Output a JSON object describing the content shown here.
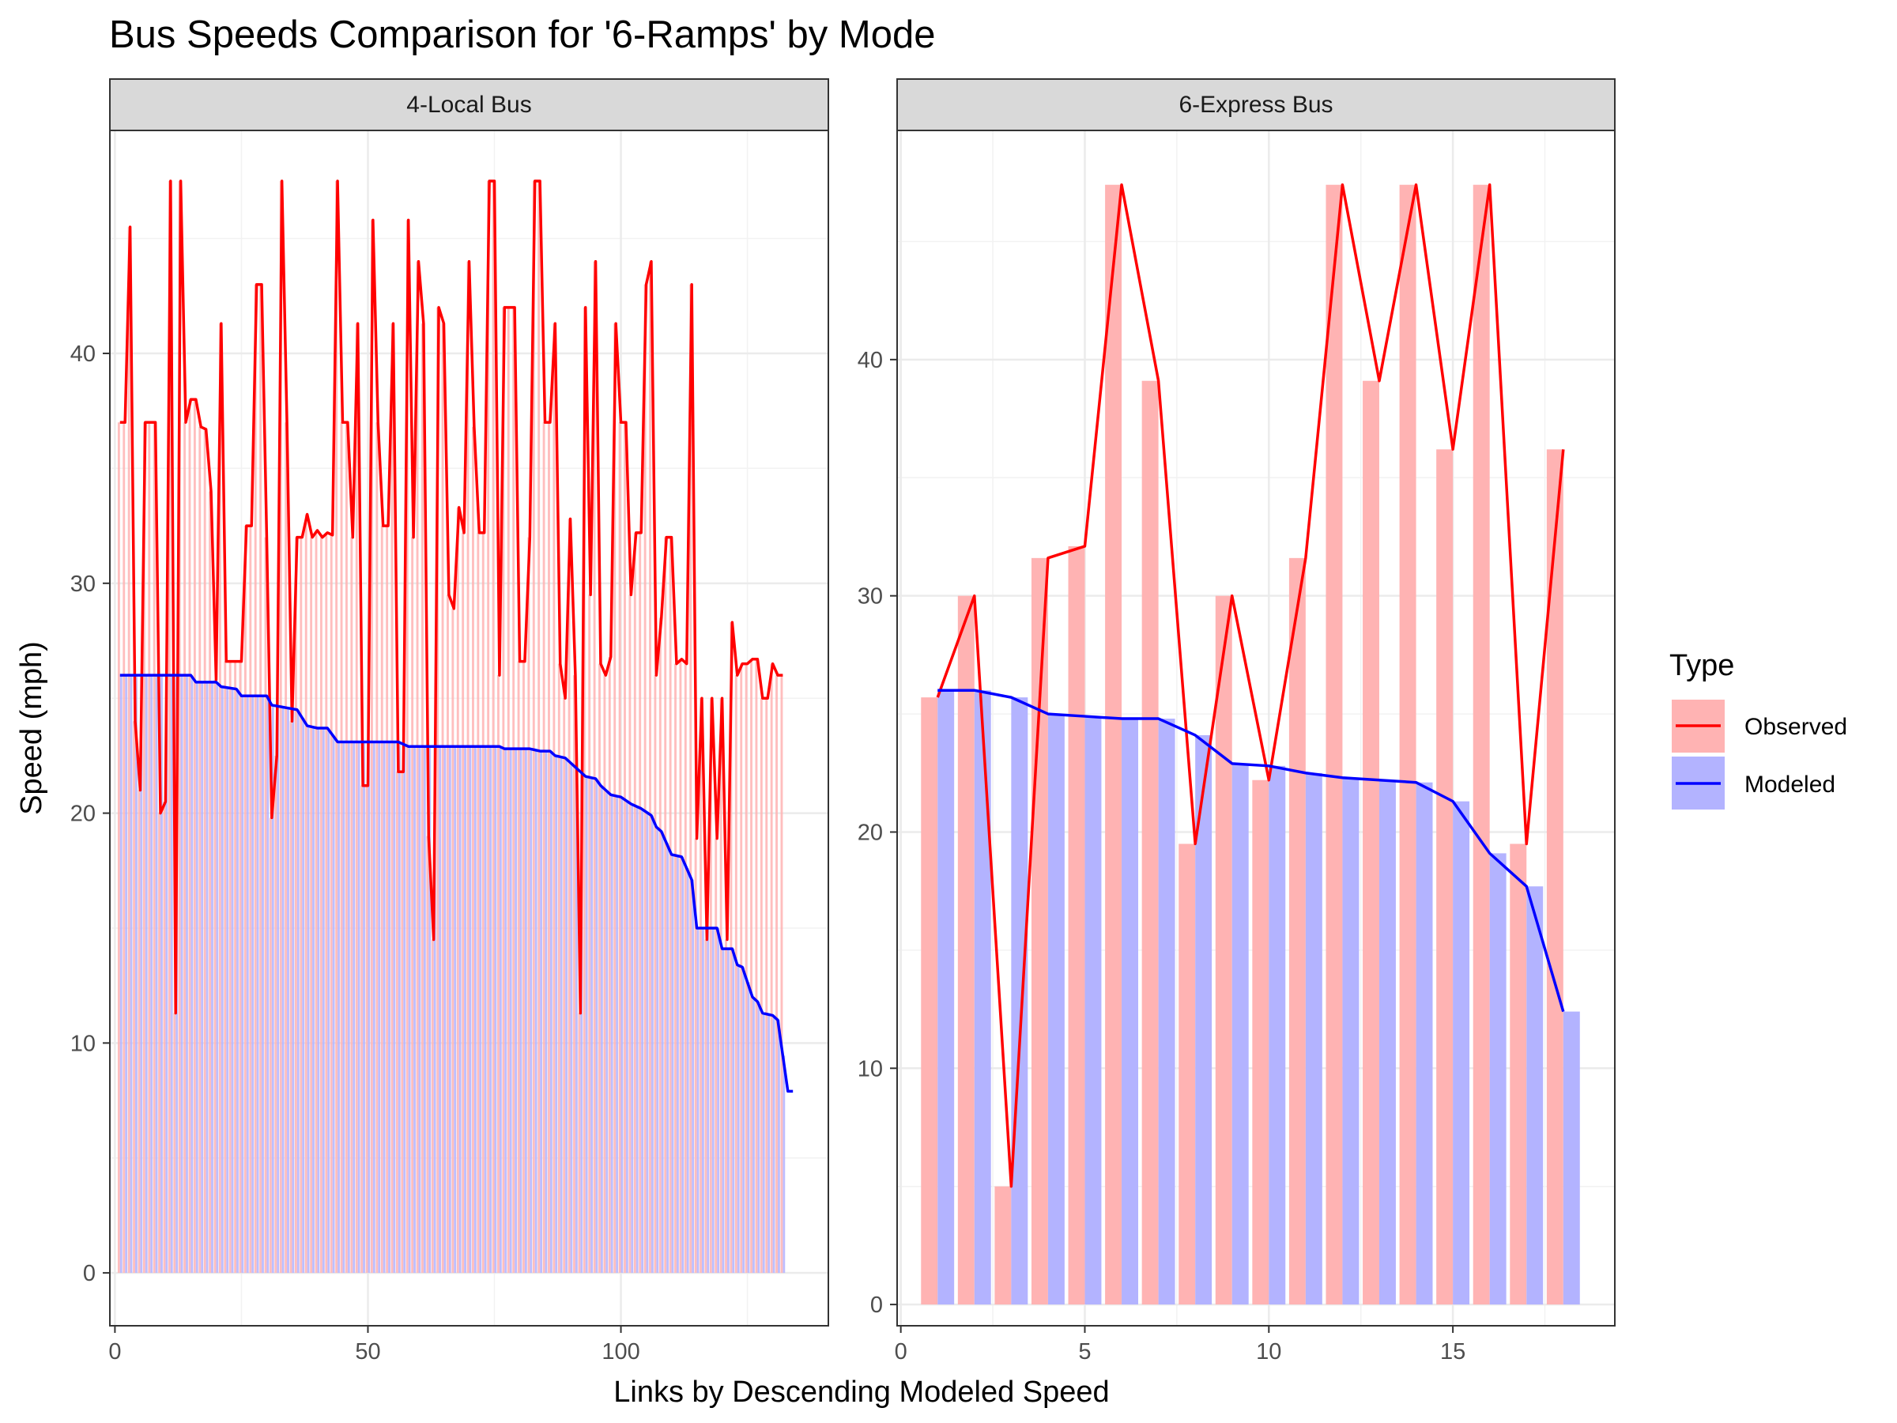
{
  "chart_data": {
    "type": "bar+line",
    "title": "Bus Speeds Comparison for '6-Ramps' by Mode",
    "xlabel": "Links by Descending Modeled Speed",
    "ylabel": "Speed (mph)",
    "grid": true,
    "legend": {
      "title": "Type",
      "position": "right",
      "entries": [
        {
          "name": "Observed",
          "line_color": "#ff0000",
          "fill_color": "#ffb3b3"
        },
        {
          "name": "Modeled",
          "line_color": "#0000ff",
          "fill_color": "#b3b3ff"
        }
      ]
    },
    "panels": [
      {
        "name": "4-Local Bus",
        "xlim": [
          -1,
          141
        ],
        "ylim": [
          -2.3,
          49.7
        ],
        "x_ticks": [
          0,
          50,
          100
        ],
        "y_ticks": [
          0,
          10,
          20,
          30,
          40
        ],
        "observed_breakpoints": [
          [
            1,
            37
          ],
          [
            2,
            37
          ],
          [
            3,
            45.5
          ],
          [
            4,
            24
          ],
          [
            5,
            21
          ],
          [
            6,
            37
          ],
          [
            7,
            37
          ],
          [
            8,
            37
          ],
          [
            9,
            20
          ],
          [
            10,
            20.5
          ],
          [
            11,
            47.5
          ],
          [
            12,
            11.3
          ],
          [
            13,
            47.5
          ],
          [
            14,
            37
          ],
          [
            15,
            38
          ],
          [
            16,
            38
          ],
          [
            17,
            36.8
          ],
          [
            18,
            36.7
          ],
          [
            19,
            34
          ],
          [
            20,
            25.8
          ],
          [
            21,
            41.3
          ],
          [
            22,
            26.6
          ],
          [
            23,
            26.6
          ],
          [
            24,
            26.6
          ],
          [
            25,
            26.6
          ],
          [
            26,
            32.5
          ],
          [
            27,
            32.5
          ],
          [
            28,
            43
          ],
          [
            29,
            43
          ],
          [
            30,
            32
          ],
          [
            31,
            19.8
          ],
          [
            32,
            22.5
          ],
          [
            33,
            47.5
          ],
          [
            34,
            37
          ],
          [
            35,
            24
          ],
          [
            36,
            32
          ],
          [
            37,
            32
          ],
          [
            38,
            33
          ],
          [
            39,
            32
          ],
          [
            40,
            32.3
          ],
          [
            41,
            32
          ],
          [
            42,
            32.2
          ],
          [
            43,
            32.1
          ],
          [
            44,
            47.5
          ],
          [
            45,
            37
          ],
          [
            46,
            37
          ],
          [
            47,
            32
          ],
          [
            48,
            41.3
          ],
          [
            49,
            21.2
          ],
          [
            50,
            21.2
          ],
          [
            51,
            45.8
          ],
          [
            52,
            37
          ],
          [
            53,
            32.5
          ],
          [
            54,
            32.5
          ],
          [
            55,
            41.3
          ],
          [
            56,
            21.8
          ],
          [
            57,
            21.8
          ],
          [
            58,
            45.8
          ],
          [
            59,
            32
          ],
          [
            60,
            44
          ],
          [
            61,
            41.3
          ],
          [
            62,
            19
          ],
          [
            63,
            14.5
          ],
          [
            64,
            42
          ],
          [
            65,
            41.3
          ],
          [
            66,
            29.5
          ],
          [
            67,
            28.9
          ],
          [
            68,
            33.3
          ],
          [
            69,
            32.2
          ],
          [
            70,
            44
          ],
          [
            71,
            36.8
          ],
          [
            72,
            32.2
          ],
          [
            73,
            32.2
          ],
          [
            74,
            47.5
          ],
          [
            75,
            47.5
          ],
          [
            76,
            26
          ],
          [
            77,
            42
          ],
          [
            78,
            42
          ],
          [
            79,
            42
          ],
          [
            80,
            26.6
          ],
          [
            81,
            26.6
          ],
          [
            82,
            32
          ],
          [
            83,
            47.5
          ],
          [
            84,
            47.5
          ],
          [
            85,
            37
          ],
          [
            86,
            37
          ],
          [
            87,
            41.3
          ],
          [
            88,
            26.5
          ],
          [
            89,
            25
          ],
          [
            90,
            32.8
          ],
          [
            91,
            26
          ],
          [
            92,
            11.3
          ],
          [
            93,
            42
          ],
          [
            94,
            29.5
          ],
          [
            95,
            44
          ],
          [
            96,
            26.5
          ],
          [
            97,
            26
          ],
          [
            98,
            26.8
          ],
          [
            99,
            41.3
          ],
          [
            100,
            37
          ],
          [
            101,
            37
          ],
          [
            102,
            29.5
          ],
          [
            103,
            32.2
          ],
          [
            104,
            32.2
          ],
          [
            105,
            43
          ],
          [
            106,
            44
          ],
          [
            107,
            26
          ],
          [
            108,
            28.5
          ],
          [
            109,
            32
          ],
          [
            110,
            32
          ],
          [
            111,
            26.5
          ],
          [
            112,
            26.7
          ],
          [
            113,
            26.5
          ],
          [
            114,
            43
          ],
          [
            115,
            18.9
          ],
          [
            116,
            25
          ],
          [
            117,
            14.5
          ],
          [
            118,
            25
          ],
          [
            119,
            18.9
          ],
          [
            120,
            25
          ],
          [
            121,
            14.5
          ],
          [
            122,
            28.3
          ],
          [
            123,
            26
          ],
          [
            124,
            26.5
          ],
          [
            125,
            26.5
          ],
          [
            126,
            26.7
          ],
          [
            127,
            26.7
          ],
          [
            128,
            25
          ],
          [
            129,
            25
          ],
          [
            130,
            26.5
          ],
          [
            131,
            26
          ],
          [
            132,
            26
          ]
        ],
        "modeled_breakpoints": [
          [
            1,
            26
          ],
          [
            15,
            26
          ],
          [
            16,
            25.7
          ],
          [
            20,
            25.7
          ],
          [
            21,
            25.5
          ],
          [
            24,
            25.4
          ],
          [
            25,
            25.1
          ],
          [
            30,
            25.1
          ],
          [
            31,
            24.7
          ],
          [
            36,
            24.5
          ],
          [
            38,
            23.8
          ],
          [
            40,
            23.7
          ],
          [
            42,
            23.7
          ],
          [
            44,
            23.1
          ],
          [
            56,
            23.1
          ],
          [
            58,
            22.9
          ],
          [
            76,
            22.9
          ],
          [
            77,
            22.8
          ],
          [
            82,
            22.8
          ],
          [
            84,
            22.7
          ],
          [
            86,
            22.7
          ],
          [
            87,
            22.5
          ],
          [
            89,
            22.4
          ],
          [
            93,
            21.6
          ],
          [
            95,
            21.5
          ],
          [
            96,
            21.2
          ],
          [
            98,
            20.8
          ],
          [
            100,
            20.7
          ],
          [
            102,
            20.4
          ],
          [
            104,
            20.2
          ],
          [
            106,
            19.9
          ],
          [
            107,
            19.4
          ],
          [
            108,
            19.2
          ],
          [
            110,
            18.2
          ],
          [
            112,
            18.1
          ],
          [
            114,
            17.1
          ],
          [
            115,
            15
          ],
          [
            119,
            15
          ],
          [
            120,
            14.1
          ],
          [
            122,
            14.1
          ],
          [
            123,
            13.4
          ],
          [
            124,
            13.3
          ],
          [
            126,
            12
          ],
          [
            127,
            11.8
          ],
          [
            128,
            11.3
          ],
          [
            130,
            11.2
          ],
          [
            131,
            11
          ],
          [
            133,
            7.9
          ],
          [
            134,
            7.9
          ]
        ]
      },
      {
        "name": "6-Express Bus",
        "xlim": [
          -0.1,
          19.4
        ],
        "ylim": [
          -0.9,
          49.7
        ],
        "x_ticks": [
          0,
          5,
          10,
          15
        ],
        "y_ticks": [
          0,
          10,
          20,
          30,
          40
        ],
        "links": [
          1,
          2,
          3,
          4,
          5,
          6,
          7,
          8,
          9,
          10,
          11,
          12,
          13,
          14,
          15,
          16,
          17,
          18
        ],
        "observed": [
          25.7,
          30.0,
          5.0,
          31.6,
          32.1,
          47.4,
          39.1,
          19.5,
          30.0,
          22.2,
          31.6,
          47.4,
          39.1,
          47.4,
          36.2,
          47.4,
          19.5,
          36.2
        ],
        "modeled": [
          26.0,
          26.0,
          25.7,
          25.0,
          24.9,
          24.8,
          24.8,
          24.1,
          22.9,
          22.8,
          22.5,
          22.3,
          22.2,
          22.1,
          21.3,
          19.1,
          17.7,
          12.4
        ]
      }
    ]
  }
}
